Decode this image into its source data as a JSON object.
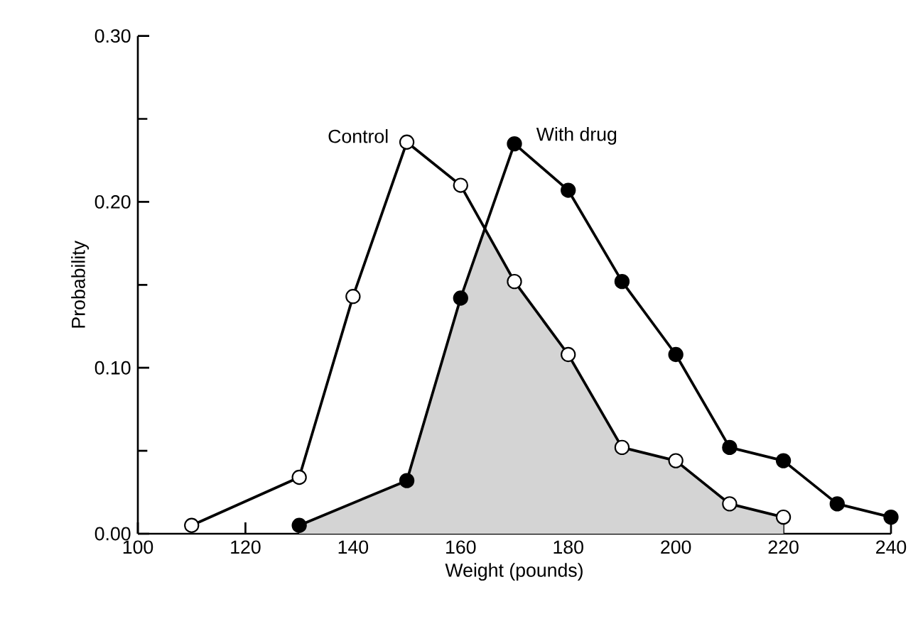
{
  "chart_data": {
    "type": "line",
    "xlabel": "Weight (pounds)",
    "ylabel": "Probability",
    "xlim": [
      100,
      240
    ],
    "ylim": [
      0,
      0.3
    ],
    "xticks": [
      100,
      120,
      140,
      160,
      180,
      200,
      220,
      240
    ],
    "yticks": [
      {
        "value": 0,
        "label": "0.00"
      },
      {
        "value": 0.1,
        "label": "0.10"
      },
      {
        "value": 0.2,
        "label": "0.20"
      },
      {
        "value": 0.3,
        "label": "0.30"
      }
    ],
    "marker": "circle",
    "grid": false,
    "series": [
      {
        "type": "area",
        "color": "#d4d4d4",
        "marker": "none",
        "x": [
          130,
          150,
          160,
          164.5,
          170,
          180,
          190,
          200,
          210,
          220
        ],
        "values": [
          0.005,
          0.032,
          0.142,
          0.184,
          0.152,
          0.108,
          0.052,
          0.044,
          0.018,
          0.01
        ]
      },
      {
        "name": "Control",
        "color": "#000000",
        "colors": [
          "#ffffff",
          "#ffffff",
          "#ffffff",
          "#ffffff",
          "#ffffff",
          "#ffffff",
          "#ffffff",
          "#ffffff",
          "#ffffff",
          "#ffffff",
          "#ffffff"
        ],
        "x": [
          110,
          130,
          140,
          150,
          160,
          170,
          180,
          190,
          200,
          210,
          220
        ],
        "values": [
          0.005,
          0.034,
          0.143,
          0.236,
          0.21,
          0.152,
          0.108,
          0.052,
          0.044,
          0.018,
          0.01
        ]
      },
      {
        "name": "With drug",
        "color": "#000000",
        "x": [
          130,
          150,
          160,
          170,
          180,
          190,
          200,
          210,
          220,
          230,
          240
        ],
        "values": [
          0.005,
          0.032,
          0.142,
          0.235,
          0.207,
          0.152,
          0.108,
          0.052,
          0.044,
          0.018,
          0.01
        ]
      }
    ]
  }
}
